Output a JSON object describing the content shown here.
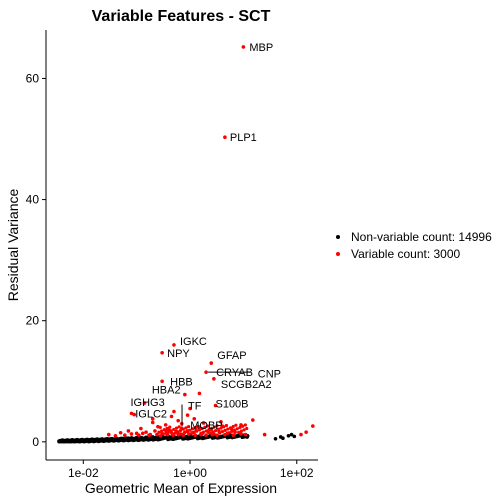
{
  "chart_data": {
    "type": "scatter",
    "title": "Variable Features - SCT",
    "xlabel": "Geometric Mean of Expression",
    "ylabel": "Residual Variance",
    "x_scale": "log10",
    "xlim": [
      0.002,
      250
    ],
    "ylim": [
      -3,
      68
    ],
    "x_ticks": [
      {
        "value": 0.01,
        "label": "1e-02"
      },
      {
        "value": 1,
        "label": "1e+00"
      },
      {
        "value": 100,
        "label": "1e+02"
      }
    ],
    "y_ticks": [
      0,
      20,
      40,
      60
    ],
    "grid": false,
    "legend_position": "right",
    "series": [
      {
        "name": "Non-variable count: 14996",
        "color": "#000000",
        "points": [
          [
            0.0035,
            0.1
          ],
          [
            0.004,
            0.1
          ],
          [
            0.0045,
            0.15
          ],
          [
            0.005,
            0.15
          ],
          [
            0.006,
            0.15
          ],
          [
            0.007,
            0.2
          ],
          [
            0.008,
            0.2
          ],
          [
            0.009,
            0.2
          ],
          [
            0.01,
            0.25
          ],
          [
            0.012,
            0.25
          ],
          [
            0.014,
            0.3
          ],
          [
            0.016,
            0.3
          ],
          [
            0.019,
            0.35
          ],
          [
            0.022,
            0.35
          ],
          [
            0.026,
            0.4
          ],
          [
            0.03,
            0.45
          ],
          [
            0.035,
            0.45
          ],
          [
            0.04,
            0.5
          ],
          [
            0.05,
            0.55
          ],
          [
            0.06,
            0.6
          ],
          [
            0.07,
            0.6
          ],
          [
            0.08,
            0.65
          ],
          [
            0.1,
            0.7
          ],
          [
            0.12,
            0.7
          ],
          [
            0.15,
            0.75
          ],
          [
            0.2,
            0.8
          ],
          [
            0.25,
            0.8
          ],
          [
            0.3,
            0.85
          ],
          [
            0.4,
            0.85
          ],
          [
            0.5,
            0.9
          ],
          [
            0.7,
            0.9
          ],
          [
            1,
            0.95
          ],
          [
            1.5,
            0.95
          ],
          [
            2,
            1.0
          ],
          [
            3,
            1.0
          ],
          [
            5,
            1.0
          ],
          [
            8,
            1.0
          ],
          [
            12,
            1.0
          ],
          [
            40,
            0.5
          ],
          [
            50,
            0.8
          ],
          [
            55,
            0.6
          ],
          [
            70,
            1.0
          ],
          [
            80,
            1.2
          ],
          [
            90,
            0.9
          ]
        ]
      },
      {
        "name": "Variable count: 3000",
        "color": "#ff0000",
        "points": [
          [
            10,
            65.2
          ],
          [
            4.5,
            50.3
          ],
          [
            0.5,
            16
          ],
          [
            0.3,
            14.7
          ],
          [
            2.5,
            13
          ],
          [
            0.3,
            10
          ],
          [
            2,
            11.5
          ],
          [
            2.8,
            10.4
          ],
          [
            0.14,
            6.4
          ],
          [
            0.8,
            7.8
          ],
          [
            1.5,
            8
          ],
          [
            0.5,
            5
          ],
          [
            1,
            5.5
          ],
          [
            3,
            6
          ],
          [
            0.09,
            4.5
          ],
          [
            0.2,
            3.2
          ],
          [
            0.6,
            3.5
          ],
          [
            1.2,
            3.8
          ],
          [
            15,
            3.6
          ],
          [
            9,
            2.8
          ],
          [
            0.12,
            2.2
          ],
          [
            0.25,
            2.5
          ],
          [
            0.4,
            2.0
          ],
          [
            0.7,
            2.2
          ],
          [
            1.5,
            2.4
          ],
          [
            2.5,
            2.0
          ],
          [
            4,
            2.6
          ],
          [
            6,
            2.1
          ],
          [
            0.05,
            1.5
          ],
          [
            0.07,
            1.8
          ],
          [
            0.1,
            1.4
          ],
          [
            0.15,
            1.6
          ],
          [
            0.18,
            1.2
          ],
          [
            0.22,
            1.8
          ],
          [
            0.3,
            1.4
          ],
          [
            0.35,
            1.9
          ],
          [
            0.45,
            1.5
          ],
          [
            0.55,
            1.7
          ],
          [
            0.65,
            1.3
          ],
          [
            0.8,
            1.6
          ],
          [
            0.9,
            1.8
          ],
          [
            1.1,
            1.5
          ],
          [
            1.3,
            1.9
          ],
          [
            1.7,
            1.4
          ],
          [
            2.2,
            1.6
          ],
          [
            2.8,
            1.3
          ],
          [
            3.5,
            1.7
          ],
          [
            5,
            1.4
          ],
          [
            7,
            1.6
          ],
          [
            11,
            1.2
          ],
          [
            0.03,
            1.2
          ],
          [
            0.04,
            1.0
          ],
          [
            0.06,
            1.1
          ],
          [
            0.08,
            1.3
          ],
          [
            0.11,
            1.1
          ],
          [
            0.13,
            1.4
          ],
          [
            0.17,
            1.1
          ],
          [
            0.24,
            1.2
          ],
          [
            0.28,
            1.0
          ],
          [
            0.38,
            1.2
          ],
          [
            0.48,
            1.1
          ],
          [
            0.6,
            1.2
          ],
          [
            0.75,
            1.1
          ],
          [
            0.95,
            1.3
          ],
          [
            1.25,
            1.1
          ],
          [
            1.6,
            1.2
          ],
          [
            2.0,
            1.1
          ],
          [
            2.6,
            1.2
          ],
          [
            3.2,
            1.1
          ],
          [
            4.5,
            1.2
          ],
          [
            6.5,
            1.1
          ],
          [
            9,
            1.3
          ],
          [
            0.45,
            4.2
          ],
          [
            0.9,
            4.4
          ],
          [
            0.08,
            4.7
          ],
          [
            0.2,
            3.8
          ],
          [
            0.35,
            2.8
          ],
          [
            0.7,
            3.0
          ],
          [
            1.8,
            3.1
          ],
          [
            3.8,
            3.3
          ],
          [
            25,
            1.2
          ],
          [
            200,
            2.6
          ],
          [
            150,
            1.6
          ],
          [
            120,
            1.2
          ]
        ]
      }
    ],
    "annotations": [
      {
        "label": "MBP",
        "x": 10,
        "y": 65.2
      },
      {
        "label": "PLP1",
        "x": 4.5,
        "y": 50.3
      },
      {
        "label": "IGKC",
        "x": 0.5,
        "y": 16
      },
      {
        "label": "NPY",
        "x": 0.3,
        "y": 14.7
      },
      {
        "label": "GFAP",
        "x": 2.5,
        "y": 13
      },
      {
        "label": "CRYAB",
        "x": 2,
        "y": 11.5
      },
      {
        "label": "CNP",
        "x": 15,
        "y": 11.3
      },
      {
        "label": "HBB",
        "x": 0.3,
        "y": 10
      },
      {
        "label": "SCGB2A2",
        "x": 2.8,
        "y": 10.4
      },
      {
        "label": "IGHG3",
        "x": 0.14,
        "y": 6.4
      },
      {
        "label": "HBA2",
        "x": 0.8,
        "y": 7.8
      },
      {
        "label": "TF",
        "x": 1,
        "y": 5.5
      },
      {
        "label": "S100B",
        "x": 3,
        "y": 6
      },
      {
        "label": "IGLC2",
        "x": 0.09,
        "y": 4.5
      },
      {
        "label": "MOBP",
        "x": 1.2,
        "y": 3.8
      }
    ]
  }
}
